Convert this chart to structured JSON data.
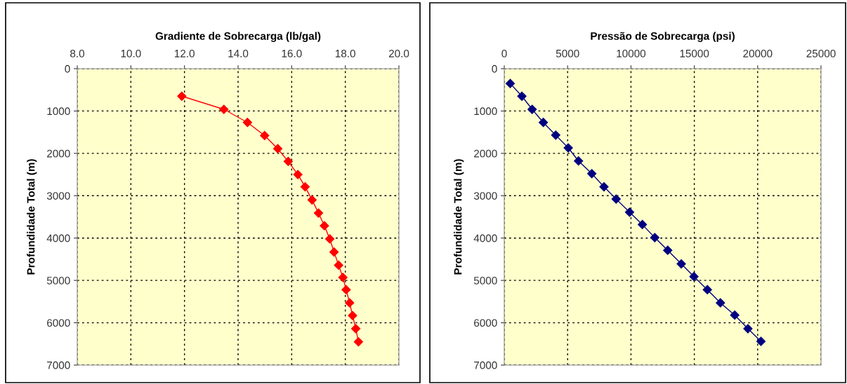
{
  "chart_data": [
    {
      "type": "line",
      "xlabel": "Gradiente de Sobrecarga (lb/gal)",
      "ylabel": "Profundidade Total (m)",
      "xlim": [
        8,
        20
      ],
      "xticks": [
        {
          "value": 8,
          "label": "8.0"
        },
        {
          "value": 10,
          "label": "10.0"
        },
        {
          "value": 12,
          "label": "12.0"
        },
        {
          "value": 14,
          "label": "14.0"
        },
        {
          "value": 16,
          "label": "16.0"
        },
        {
          "value": 18,
          "label": "18.0"
        },
        {
          "value": 20,
          "label": "20.0"
        }
      ],
      "ylim": [
        7000,
        0
      ],
      "yticks": [
        0,
        1000,
        2000,
        3000,
        4000,
        5000,
        6000,
        7000
      ],
      "grid": true,
      "marker": "diamond",
      "line_style": "solid",
      "series": [
        {
          "color": "#ff0000",
          "x": [
            null,
            11.9,
            13.47,
            14.35,
            14.99,
            15.48,
            15.87,
            16.23,
            16.5,
            16.76,
            17.0,
            17.22,
            17.42,
            17.58,
            17.75,
            17.91,
            18.03,
            18.16,
            18.27,
            18.39,
            18.49
          ],
          "values": [
            null,
            650,
            960,
            1270,
            1580,
            1890,
            2190,
            2500,
            2790,
            3100,
            3410,
            3710,
            4020,
            4330,
            4640,
            4930,
            5220,
            5530,
            5830,
            6140,
            6450
          ]
        }
      ]
    },
    {
      "type": "line",
      "xlabel": "Pressão de Sobrecarga (psi)",
      "ylabel": "Profundidade Total (m)",
      "xlim": [
        0,
        25000
      ],
      "xticks": [
        0,
        5000,
        10000,
        15000,
        20000,
        25000
      ],
      "ylim": [
        7000,
        0
      ],
      "yticks": [
        0,
        1000,
        2000,
        3000,
        4000,
        5000,
        6000,
        7000
      ],
      "grid": true,
      "marker": "diamond",
      "line_style": "solid",
      "series": [
        {
          "color": "#000080",
          "x": [
            470,
            1390,
            2200,
            3080,
            4060,
            5050,
            5860,
            6910,
            7870,
            8830,
            9890,
            10900,
            11880,
            12900,
            13970,
            14970,
            16030,
            17060,
            18190,
            19230,
            20260
          ],
          "values": [
            350,
            650,
            960,
            1270,
            1570,
            1870,
            2180,
            2480,
            2790,
            3080,
            3390,
            3680,
            3990,
            4290,
            4610,
            4910,
            5220,
            5530,
            5820,
            6140,
            6440
          ]
        }
      ]
    }
  ]
}
